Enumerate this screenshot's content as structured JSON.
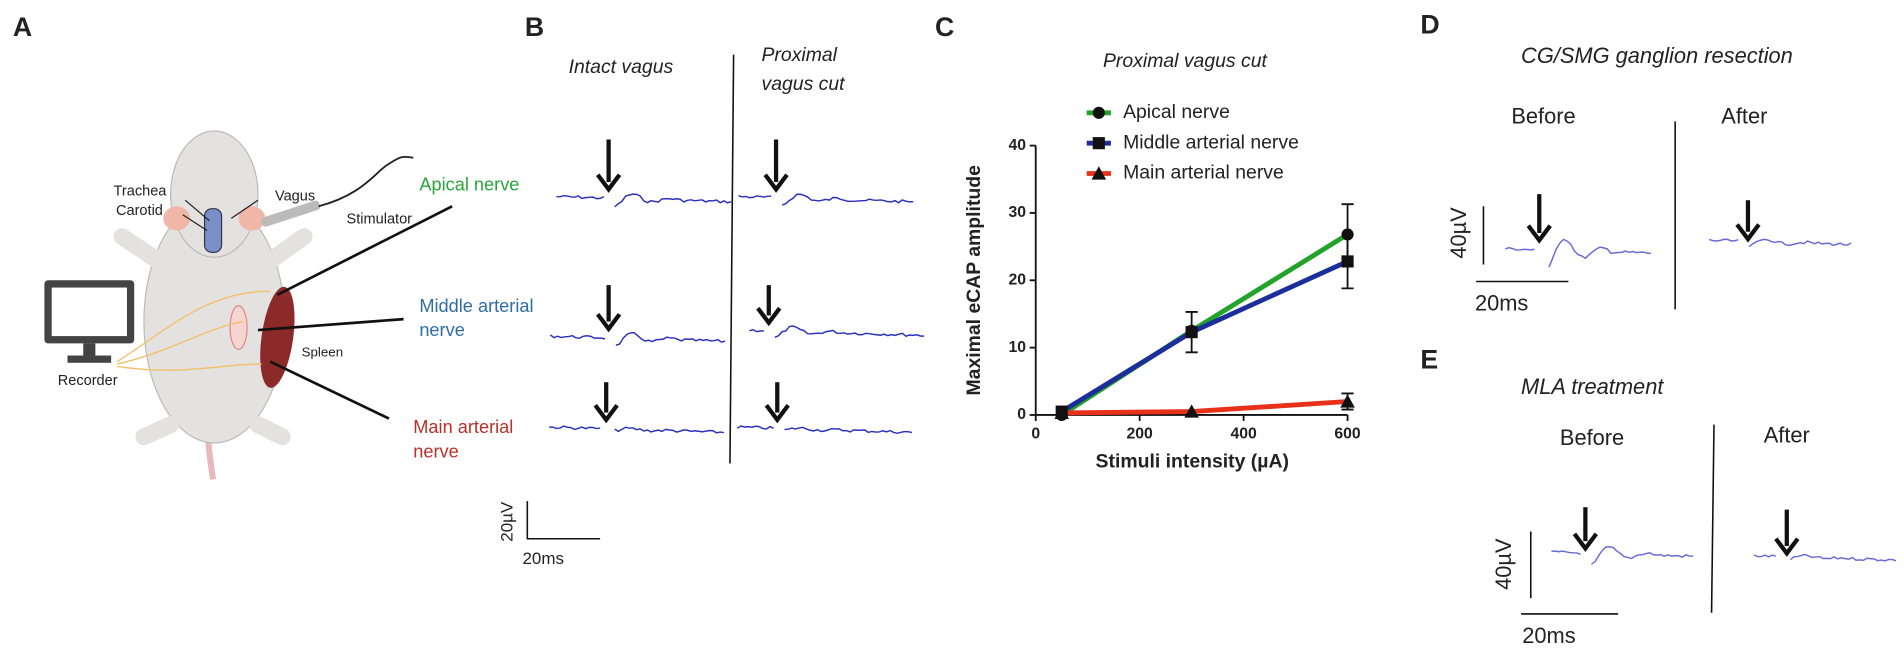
{
  "panels": {
    "a": "A",
    "b": "B",
    "c": "C",
    "d": "D",
    "e": "E"
  },
  "panel_a": {
    "trachea": "Trachea",
    "carotid": "Carotid",
    "vagus": "Vagus",
    "stimulator": "Stimulator",
    "recorder": "Recorder",
    "spleen": "Spleen",
    "apical": "Apical nerve",
    "middle": [
      "Middle arterial",
      "nerve"
    ],
    "main": [
      "Main arterial",
      "nerve"
    ]
  },
  "panel_b": {
    "intact": "Intact vagus",
    "cut": [
      "Proximal",
      "vagus cut"
    ],
    "scale_v": "20µV",
    "scale_t": "20ms"
  },
  "panel_d": {
    "title": "CG/SMG ganglion resection",
    "before": "Before",
    "after": "After",
    "scale_v": "40µV",
    "scale_t": "20ms"
  },
  "panel_e": {
    "title": "MLA treatment",
    "before": "Before",
    "after": "After",
    "scale_v": "40µV",
    "scale_t": "20ms"
  },
  "chart_data": {
    "type": "line",
    "title": "Proximal vagus cut",
    "y_label": "Maximal eCAP amplitude",
    "x_label": "Stimuli intensity (µA)",
    "x": [
      50,
      300,
      600
    ],
    "series": [
      {
        "name": "Apical nerve",
        "color": "#22a32a",
        "marker": "circle",
        "values": [
          0,
          12.5,
          26.8
        ],
        "errors": [
          0,
          0,
          4.5
        ]
      },
      {
        "name": "Middle arterial nerve",
        "color": "#1c2e9c",
        "marker": "square",
        "values": [
          0.5,
          12.3,
          22.8
        ],
        "errors": [
          0,
          3,
          4
        ]
      },
      {
        "name": "Main arterial nerve",
        "color": "#e8311a",
        "marker": "triangle",
        "values": [
          0.3,
          0.5,
          2
        ],
        "errors": [
          0,
          0,
          1.2
        ]
      }
    ],
    "xlim": [
      0,
      600
    ],
    "xticks": [
      0,
      200,
      400,
      600
    ],
    "ylim": [
      0,
      40
    ],
    "yticks": [
      0,
      10,
      20,
      30,
      40
    ],
    "legend": "top"
  }
}
